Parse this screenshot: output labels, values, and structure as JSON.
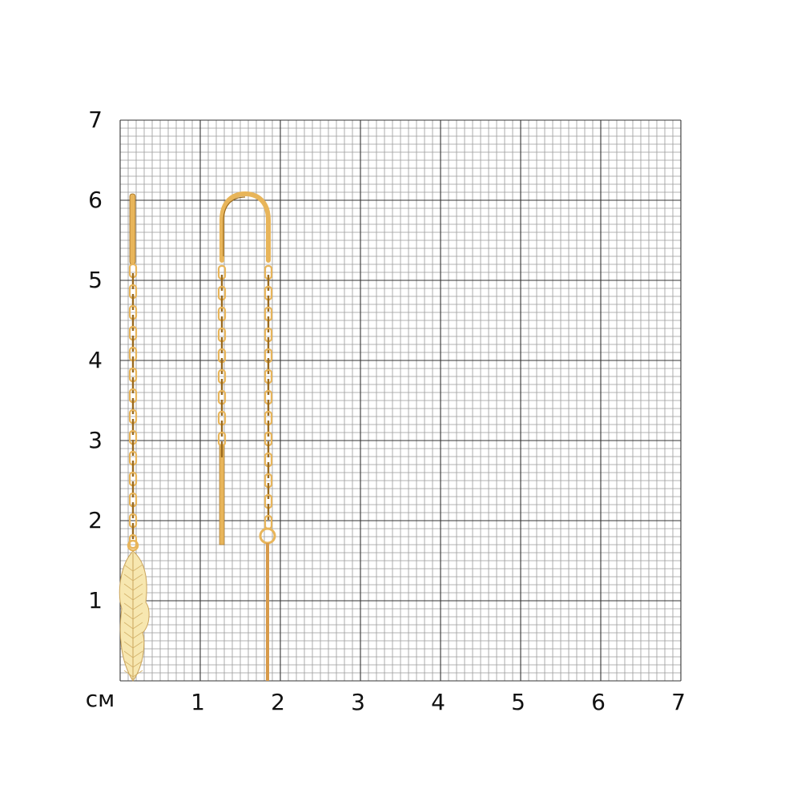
{
  "scale": {
    "unit_label": "см",
    "y_ticks": [
      "1",
      "2",
      "3",
      "4",
      "5",
      "6",
      "7"
    ],
    "x_ticks": [
      "1",
      "2",
      "3",
      "4",
      "5",
      "6",
      "7"
    ],
    "range_cm": [
      0,
      7
    ],
    "minor_grid_mm": 1
  },
  "product": {
    "description_visible": false,
    "metal_color": "#E8B55A",
    "feather_color": "#F7E7B0"
  },
  "colors": {
    "major_grid": "#333333",
    "minor_grid": "#9a9a9a",
    "background": "#ffffff"
  }
}
